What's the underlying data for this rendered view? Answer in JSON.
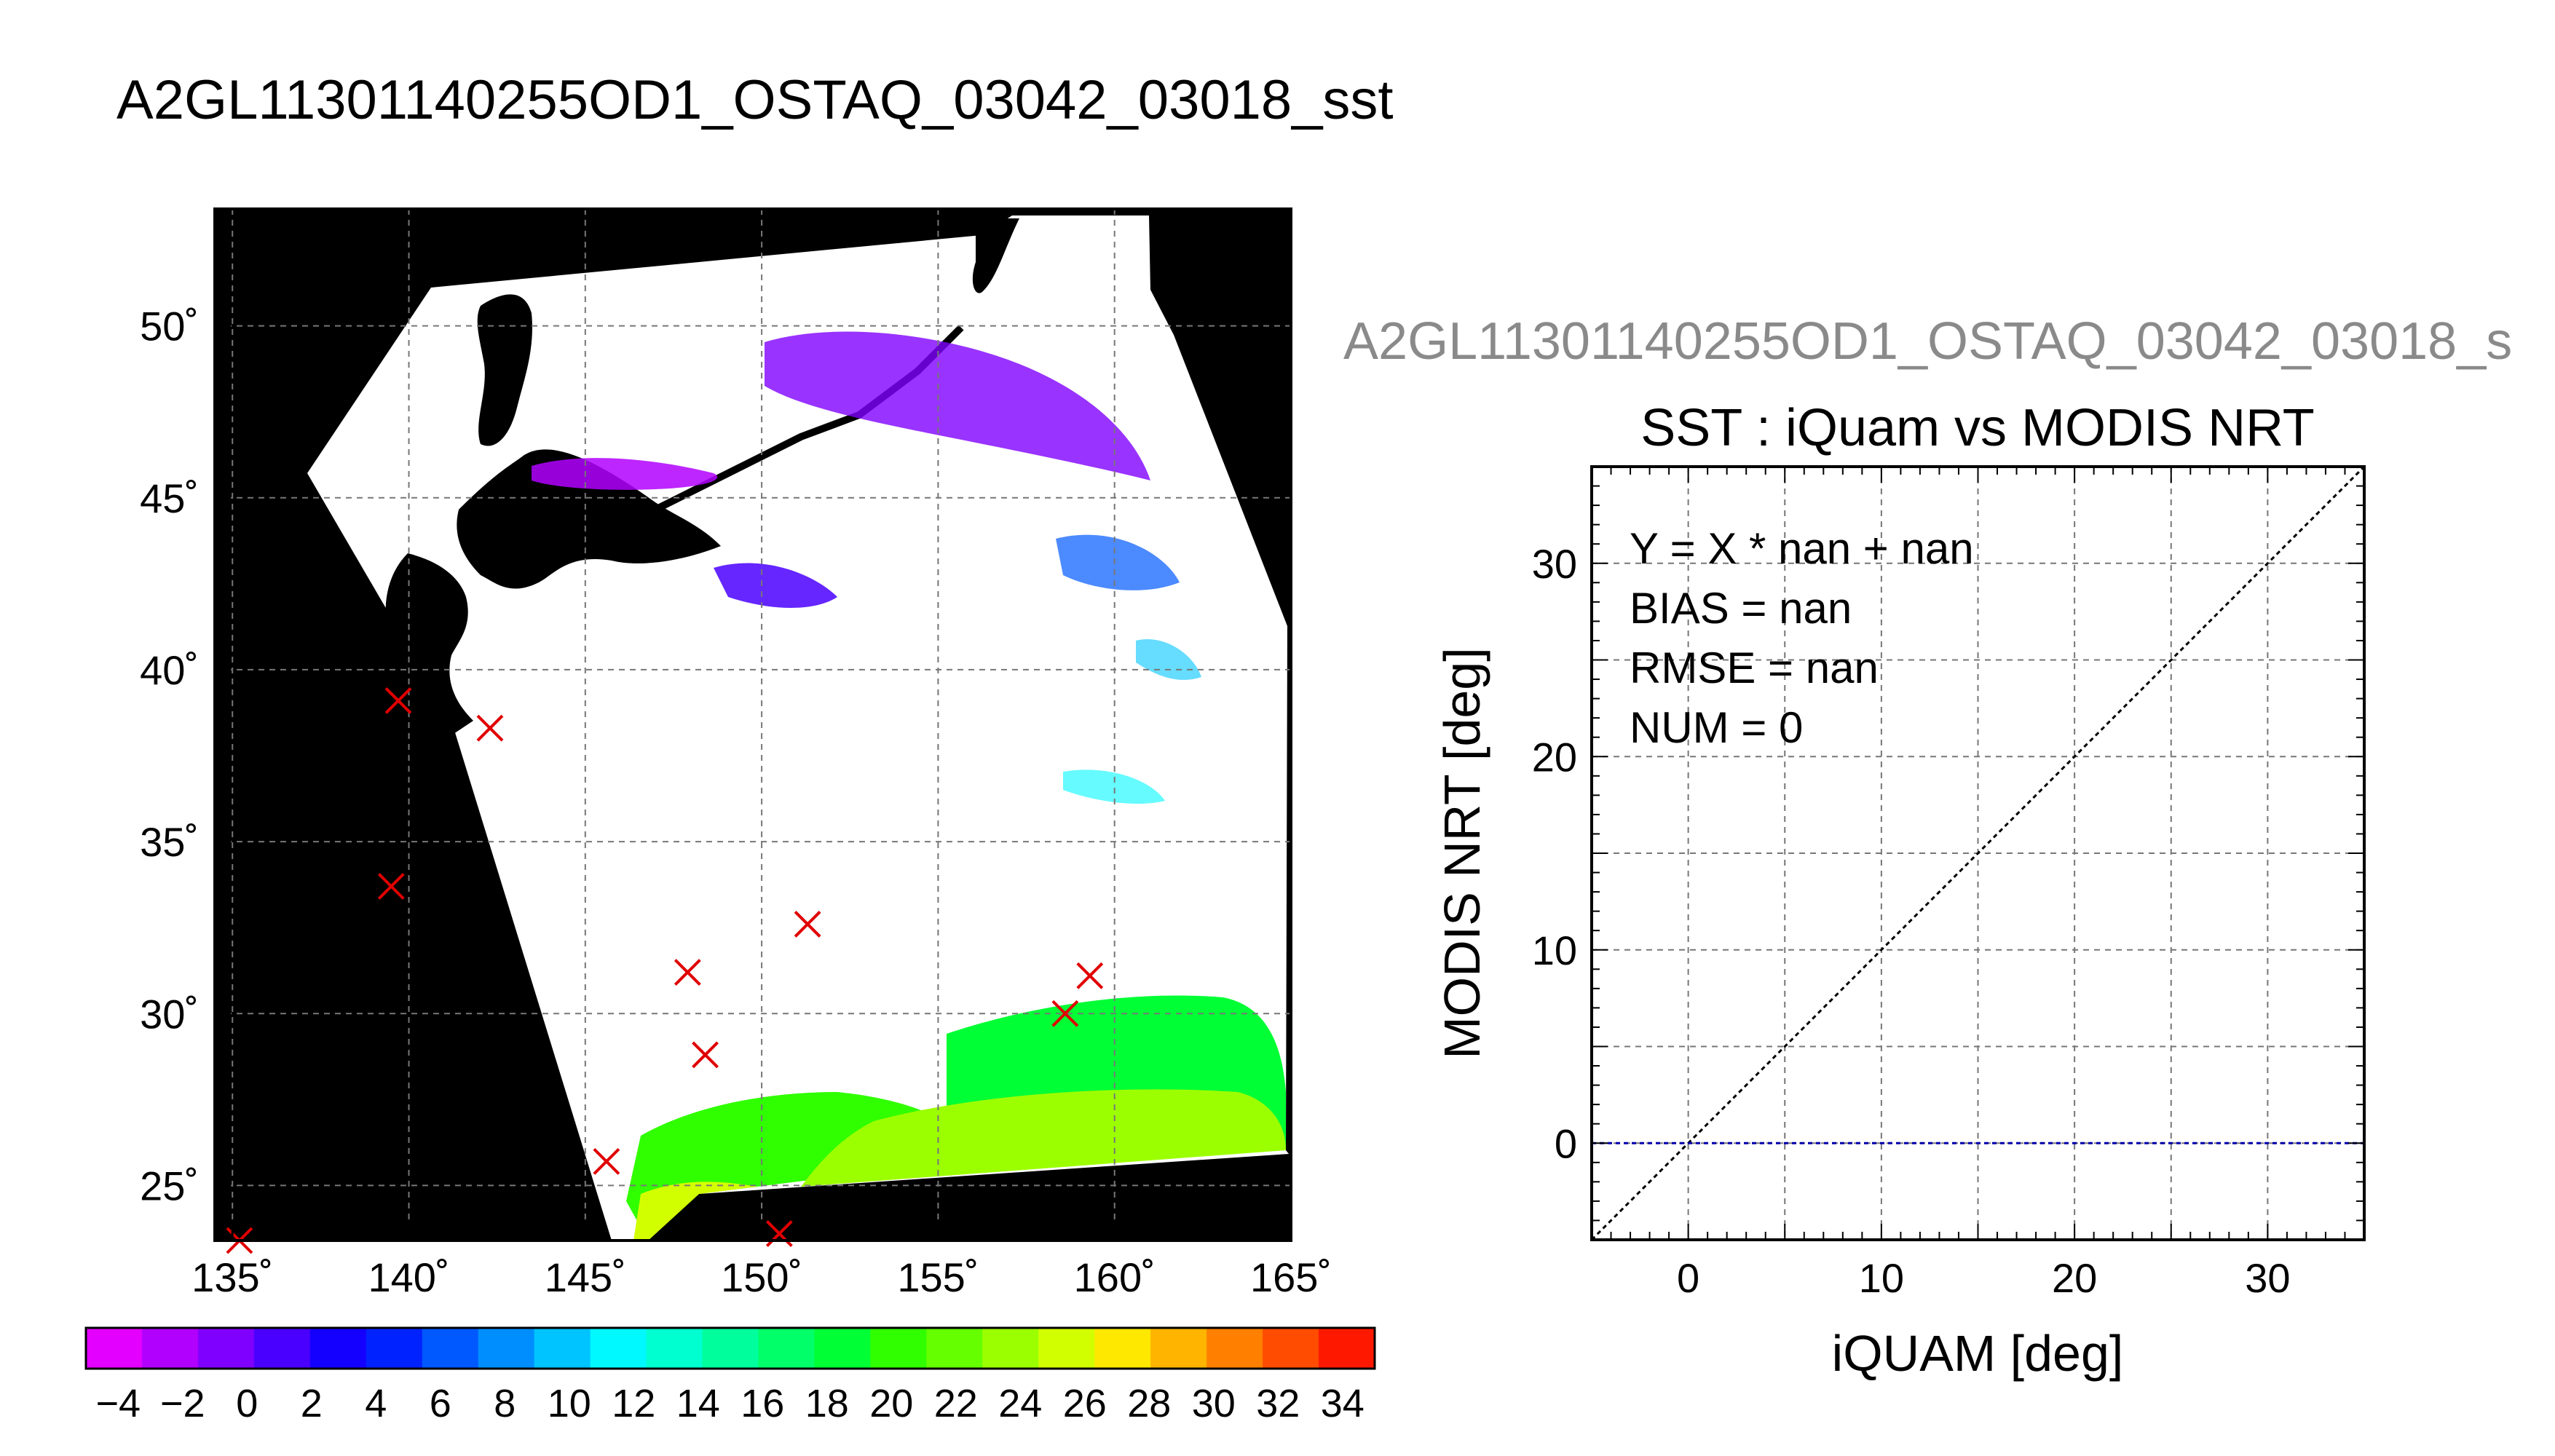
{
  "main_title": "A2GL11301140255OD1_OSTAQ_03042_03018_sst",
  "scatter_header": "A2GL11301140255OD1_OSTAQ_03042_03018_s",
  "colors": {
    "land": "#000000",
    "no_data": "#ffffff",
    "marker": "#e00000",
    "zero_line": "#0000aa",
    "grid": "#777777"
  },
  "chart_data": [
    {
      "type": "heatmap",
      "title": "",
      "x_ticks": [
        "135˚",
        "140˚",
        "145˚",
        "150˚",
        "155˚",
        "160˚",
        "165˚"
      ],
      "x_values": [
        135,
        140,
        145,
        150,
        155,
        160,
        165
      ],
      "y_ticks": [
        "25˚",
        "30˚",
        "35˚",
        "40˚",
        "45˚",
        "50˚"
      ],
      "y_values": [
        25,
        30,
        35,
        40,
        45,
        50
      ],
      "xlim": [
        134.5,
        165
      ],
      "ylim": [
        23.4,
        53.4
      ],
      "grid": true,
      "markers": [
        {
          "lon": 139.7,
          "lat": 39.1
        },
        {
          "lon": 142.3,
          "lat": 38.3
        },
        {
          "lon": 139.5,
          "lat": 33.7
        },
        {
          "lon": 151.3,
          "lat": 32.6
        },
        {
          "lon": 147.9,
          "lat": 31.2
        },
        {
          "lon": 159.3,
          "lat": 31.1
        },
        {
          "lon": 158.6,
          "lat": 30.0
        },
        {
          "lon": 148.4,
          "lat": 28.8
        },
        {
          "lon": 145.6,
          "lat": 25.7
        },
        {
          "lon": 150.5,
          "lat": 23.6
        },
        {
          "lon": 135.2,
          "lat": 23.4
        }
      ],
      "colorbar": {
        "min": -5,
        "max": 35,
        "step": 2,
        "tick_labels": [
          "−4",
          "−2",
          "0",
          "2",
          "4",
          "6",
          "8",
          "10",
          "12",
          "14",
          "16",
          "18",
          "20",
          "22",
          "24",
          "26",
          "28",
          "30",
          "32",
          "34"
        ],
        "tick_values": [
          -4,
          -2,
          0,
          2,
          4,
          6,
          8,
          10,
          12,
          14,
          16,
          18,
          20,
          22,
          24,
          26,
          28,
          30,
          32,
          34
        ],
        "colors": [
          "#e400ff",
          "#b200ff",
          "#8000ff",
          "#4a00ff",
          "#1400ff",
          "#0022ff",
          "#0058ff",
          "#008eff",
          "#00c4ff",
          "#00f8ff",
          "#00ffd0",
          "#00ff9c",
          "#00ff68",
          "#00ff34",
          "#30ff00",
          "#66ff00",
          "#9cff00",
          "#d2ff00",
          "#ffe800",
          "#ffb400",
          "#ff8000",
          "#ff4c00",
          "#ff1800"
        ]
      }
    },
    {
      "type": "scatter",
      "title": "SST : iQuam vs MODIS NRT",
      "xlabel": "iQUAM [deg]",
      "ylabel": "MODIS NRT [deg]",
      "xlim": [
        -5,
        35
      ],
      "ylim": [
        -5,
        35
      ],
      "x_ticks": [
        0,
        10,
        20,
        30
      ],
      "y_ticks": [
        0,
        10,
        20,
        30
      ],
      "grid_step": 5,
      "grid": true,
      "points": [],
      "one_to_one_line": true,
      "zero_line": 0,
      "stats": [
        "Y = X * nan + nan",
        "BIAS = nan",
        "RMSE = nan",
        "NUM = 0"
      ]
    }
  ]
}
